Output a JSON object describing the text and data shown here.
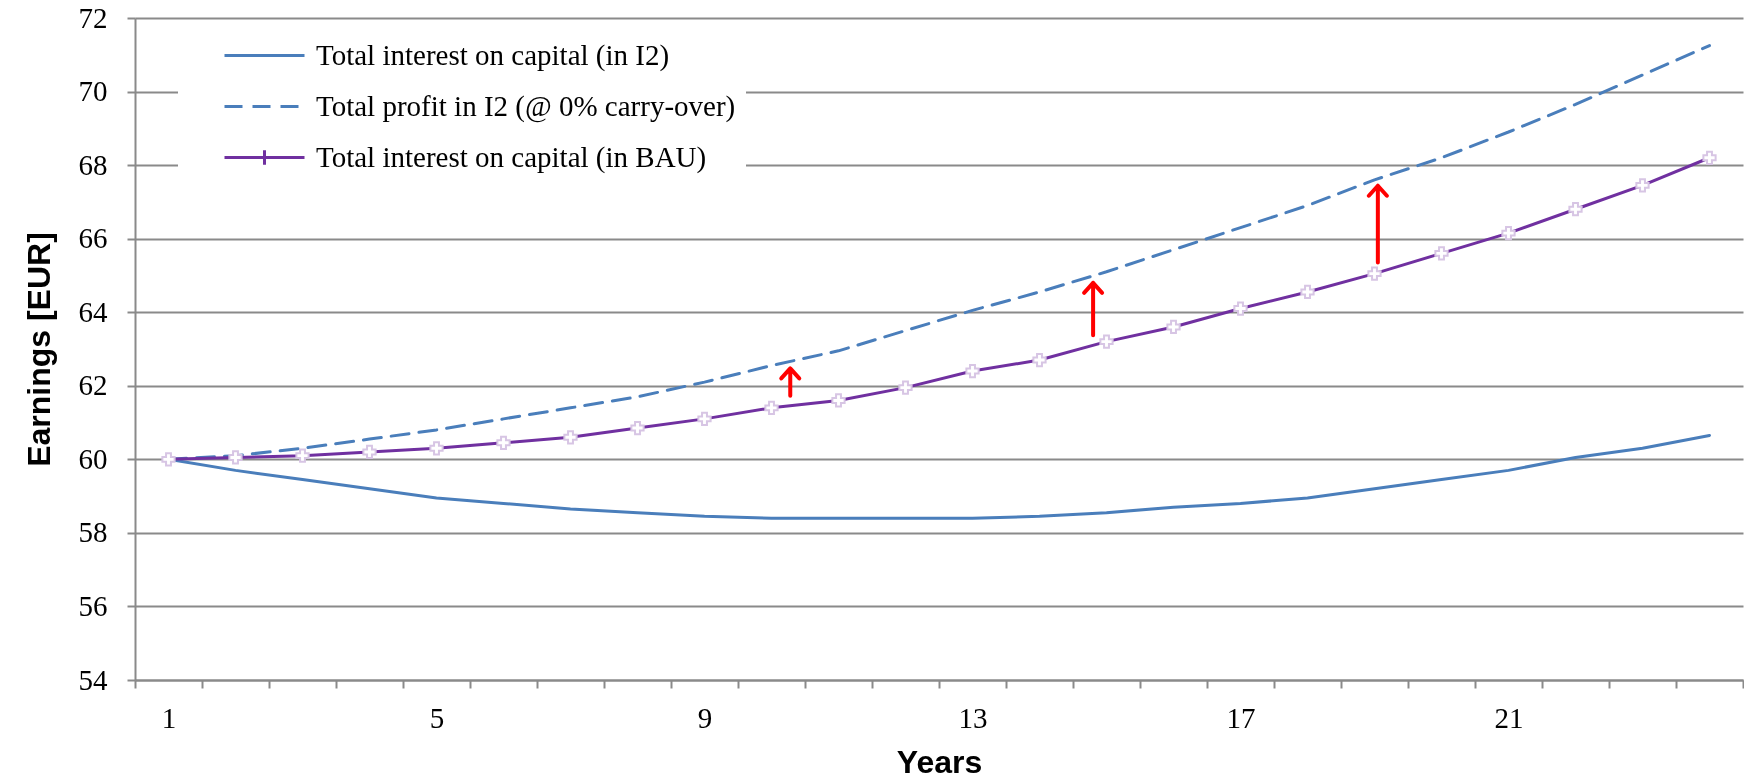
{
  "chart_data": {
    "type": "line",
    "xlabel": "Years",
    "ylabel": "Earnings [EUR]",
    "categories": [
      "1",
      null,
      null,
      null,
      "5",
      null,
      null,
      null,
      "9",
      null,
      null,
      null,
      "13",
      null,
      null,
      null,
      "17",
      null,
      null,
      null,
      "21",
      null,
      null,
      null
    ],
    "series": [
      {
        "name": "Total interest on capital (in I2)",
        "color": "#4a7ebb",
        "line_style": "solid",
        "values": [
          60,
          59.7,
          59.45,
          59.2,
          58.95,
          58.8,
          58.65,
          58.55,
          58.45,
          58.4,
          58.4,
          58.4,
          58.4,
          58.45,
          58.55,
          58.7,
          58.8,
          58.95,
          59.2,
          59.45,
          59.7,
          60.05,
          60.3,
          60.65
        ]
      },
      {
        "name": "Total profit in I2 (@ 0% carry-over)",
        "color": "#4a7ebb",
        "line_style": "dashed",
        "values": [
          60,
          60.1,
          60.3,
          60.55,
          60.8,
          61.1,
          61.4,
          61.7,
          62.1,
          62.55,
          62.95,
          63.5,
          64.05,
          64.55,
          65.1,
          65.7,
          66.3,
          66.9,
          67.6,
          68.2,
          68.9,
          69.65,
          70.45,
          71.25
        ]
      },
      {
        "name": "Total interest on capital (in BAU)",
        "color": "#7030a0",
        "line_style": "solid",
        "marker": "cross",
        "values": [
          60,
          60.05,
          60.1,
          60.2,
          60.3,
          60.45,
          60.6,
          60.85,
          61.1,
          61.4,
          61.6,
          61.95,
          62.4,
          62.7,
          63.2,
          63.6,
          64.1,
          64.55,
          65.05,
          65.6,
          66.15,
          66.8,
          67.45,
          68.2
        ]
      }
    ],
    "ylim": [
      54,
      72
    ],
    "yticks": [
      54,
      56,
      58,
      60,
      62,
      64,
      66,
      68,
      70,
      72
    ],
    "grid": "y",
    "legend": "top left"
  }
}
